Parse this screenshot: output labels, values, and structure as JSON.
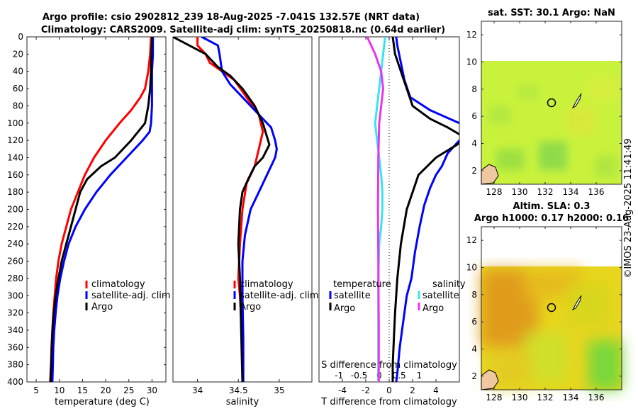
{
  "figure": {
    "title_line1": "Argo profile: csio 2902812_239 18-Aug-2025 -7.041S 132.57E (NRT data)",
    "title_line2": "Climatology: CARS2009. Satellite-adj clim: synTS_20250818.nc (0.64d earlier)",
    "watermark": "©IMOS 23-Aug-2025 11:41:49"
  },
  "colors": {
    "climatology": "#ff0000",
    "satellite": "#0000ff",
    "argo": "#000000",
    "sat_salinity": "#33e6f0",
    "argo_salinity": "#ee33ee"
  },
  "chart_data": [
    {
      "type": "line",
      "id": "temperature",
      "xlabel": "temperature (deg C)",
      "xlim": [
        3,
        33
      ],
      "xticks": [
        "5",
        "10",
        "15",
        "20",
        "25",
        "30"
      ],
      "ylim": [
        0,
        400
      ],
      "yticks": [
        "0",
        "20",
        "40",
        "60",
        "80",
        "100",
        "120",
        "140",
        "160",
        "180",
        "200",
        "220",
        "240",
        "260",
        "280",
        "300",
        "320",
        "340",
        "360",
        "380",
        "400"
      ],
      "legend": [
        "climatology",
        "satellite-adj. clim",
        "Argo"
      ],
      "series": [
        {
          "name": "climatology",
          "x": [
            29.8,
            29.6,
            29.2,
            28.5,
            27.5,
            25.5,
            23.0,
            20.0,
            17.5,
            15.5,
            14.0,
            12.5,
            11.5,
            10.5,
            9.8,
            9.3,
            9.0,
            8.7,
            8.5,
            8.3,
            8.2,
            8.0
          ],
          "depth": [
            0,
            20,
            40,
            60,
            70,
            85,
            100,
            120,
            140,
            160,
            180,
            200,
            220,
            240,
            260,
            280,
            300,
            320,
            340,
            360,
            380,
            400
          ]
        },
        {
          "name": "satellite-adj. clim",
          "x": [
            30.2,
            30.2,
            30.0,
            30.0,
            30.0,
            29.8,
            29.5,
            28.0,
            24.5,
            21.0,
            18.0,
            15.5,
            13.5,
            12.0,
            11.0,
            10.2,
            9.6,
            9.2,
            8.9,
            8.7,
            8.6,
            8.5
          ],
          "depth": [
            0,
            20,
            40,
            60,
            80,
            100,
            110,
            120,
            140,
            160,
            180,
            200,
            220,
            240,
            260,
            280,
            300,
            320,
            340,
            360,
            380,
            400
          ]
        },
        {
          "name": "Argo",
          "x": [
            30.0,
            29.9,
            29.8,
            29.6,
            29.2,
            28.5,
            27.0,
            25.5,
            22.0,
            19.0,
            16.0,
            14.5,
            13.5,
            12.5,
            11.5,
            10.5,
            9.8,
            9.2,
            8.8,
            8.5,
            8.3,
            8.1
          ],
          "depth": [
            0,
            20,
            40,
            60,
            80,
            100,
            110,
            120,
            140,
            150,
            165,
            180,
            200,
            220,
            240,
            260,
            280,
            300,
            320,
            340,
            370,
            400
          ]
        }
      ]
    },
    {
      "type": "line",
      "id": "salinity",
      "xlabel": "salinity",
      "xlim": [
        33.7,
        35.4
      ],
      "xticks": [
        "34",
        "34.5",
        "35"
      ],
      "ylim": [
        0,
        400
      ],
      "legend": [
        "climatology",
        "satellite-adj. clim",
        "Argo"
      ],
      "series": [
        {
          "name": "climatology",
          "x": [
            34.0,
            34.0,
            34.1,
            34.15,
            34.3,
            34.45,
            34.6,
            34.75,
            34.8,
            34.75,
            34.7,
            34.6,
            34.55,
            34.52,
            34.5,
            34.52,
            34.53,
            34.54,
            34.55,
            34.55
          ],
          "depth": [
            0,
            10,
            20,
            30,
            40,
            50,
            70,
            90,
            110,
            130,
            150,
            170,
            200,
            240,
            280,
            300,
            320,
            350,
            380,
            400
          ]
        },
        {
          "name": "satellite-adj. clim",
          "x": [
            34.05,
            34.15,
            34.25,
            34.27,
            34.3,
            34.4,
            34.55,
            34.75,
            34.9,
            34.95,
            34.97,
            34.95,
            34.85,
            34.75,
            34.65,
            34.58,
            34.55,
            34.55,
            34.56,
            34.56
          ],
          "depth": [
            0,
            5,
            10,
            20,
            40,
            55,
            70,
            90,
            105,
            120,
            130,
            140,
            160,
            180,
            200,
            230,
            260,
            300,
            350,
            400
          ]
        },
        {
          "name": "Argo",
          "x": [
            33.7,
            33.9,
            34.1,
            34.25,
            34.4,
            34.55,
            34.7,
            34.8,
            34.88,
            34.8,
            34.7,
            34.62,
            34.55,
            34.52,
            34.5,
            34.52,
            34.53,
            34.54,
            34.55
          ],
          "depth": [
            0,
            10,
            20,
            35,
            45,
            60,
            80,
            100,
            125,
            140,
            150,
            165,
            180,
            200,
            240,
            280,
            320,
            360,
            400
          ]
        }
      ]
    },
    {
      "type": "line",
      "id": "differences",
      "xlabel": "T difference from climatology",
      "xlim": [
        -6,
        6
      ],
      "xticks": [
        "-4",
        "-2",
        "0",
        "2",
        "4"
      ],
      "top_label": "S difference from climatology",
      "top_xlim": [
        -1.5,
        2
      ],
      "top_xticks": [
        "-1",
        "-0.5",
        "0",
        "0.5",
        "1"
      ],
      "ylim": [
        0,
        400
      ],
      "legend_title_left": "temperature",
      "legend_title_right": "salinity",
      "legend": [
        "satellite",
        "Argo",
        "satellite",
        "Argo"
      ],
      "series": [
        {
          "name": "temperature satellite",
          "x": [
            0.6,
            0.7,
            1.0,
            1.3,
            1.8,
            3.5,
            6.0,
            7.0,
            6.0,
            5.0,
            4.5,
            4.0,
            3.5,
            3.0,
            2.6,
            2.2,
            1.9,
            1.5,
            1.2,
            0.9,
            0.7,
            0.6
          ],
          "depth": [
            0,
            10,
            30,
            50,
            70,
            85,
            100,
            110,
            120,
            135,
            150,
            160,
            175,
            195,
            220,
            250,
            280,
            300,
            330,
            360,
            390,
            400
          ]
        },
        {
          "name": "temperature Argo",
          "x": [
            0.3,
            0.5,
            1.0,
            1.5,
            2.0,
            3.5,
            5.0,
            6.5,
            5.8,
            4.0,
            2.5,
            1.5,
            1.0,
            0.7,
            0.5,
            0.4,
            0.3,
            0.3
          ],
          "depth": [
            0,
            20,
            40,
            60,
            80,
            95,
            105,
            117,
            125,
            140,
            160,
            200,
            240,
            280,
            320,
            350,
            380,
            400
          ]
        },
        {
          "name": "salinity satellite",
          "x": [
            0.15,
            0.1,
            0.05,
            0,
            -0.05,
            -0.1,
            -0.05,
            0,
            0.05,
            0.08,
            0.08,
            0.05,
            0.0,
            -0.02,
            -0.02,
            -0.02
          ],
          "depth": [
            0,
            20,
            40,
            60,
            80,
            100,
            120,
            140,
            160,
            180,
            200,
            220,
            240,
            280,
            340,
            400
          ]
        },
        {
          "name": "salinity Argo",
          "x": [
            -0.3,
            -0.1,
            0.05,
            0.1,
            0.05,
            0,
            -0.02,
            -0.03,
            -0.02,
            -0.01,
            -0.01
          ],
          "depth": [
            0,
            20,
            40,
            60,
            80,
            100,
            140,
            200,
            260,
            340,
            400
          ]
        }
      ]
    },
    {
      "type": "heatmap",
      "id": "sst-map",
      "title": "sat. SST: 30.1 Argo: NaN",
      "xlim": [
        127,
        138
      ],
      "ylim": [
        1,
        13
      ],
      "xticks": [
        "128",
        "130",
        "132",
        "134",
        "136"
      ],
      "yticks": [
        "2",
        "4",
        "6",
        "8",
        "10",
        "12"
      ],
      "float_position": [
        132.57,
        7.04
      ]
    },
    {
      "type": "heatmap",
      "id": "sla-map",
      "title_line1": "Altim. SLA: 0.3",
      "title_line2": "Argo h1000: 0.17 h2000: 0.16",
      "xlim": [
        127,
        138
      ],
      "ylim": [
        1,
        13
      ],
      "xticks": [
        "128",
        "130",
        "132",
        "134",
        "136"
      ],
      "yticks": [
        "2",
        "4",
        "6",
        "8",
        "10",
        "12"
      ],
      "float_position": [
        132.57,
        7.04
      ]
    }
  ]
}
